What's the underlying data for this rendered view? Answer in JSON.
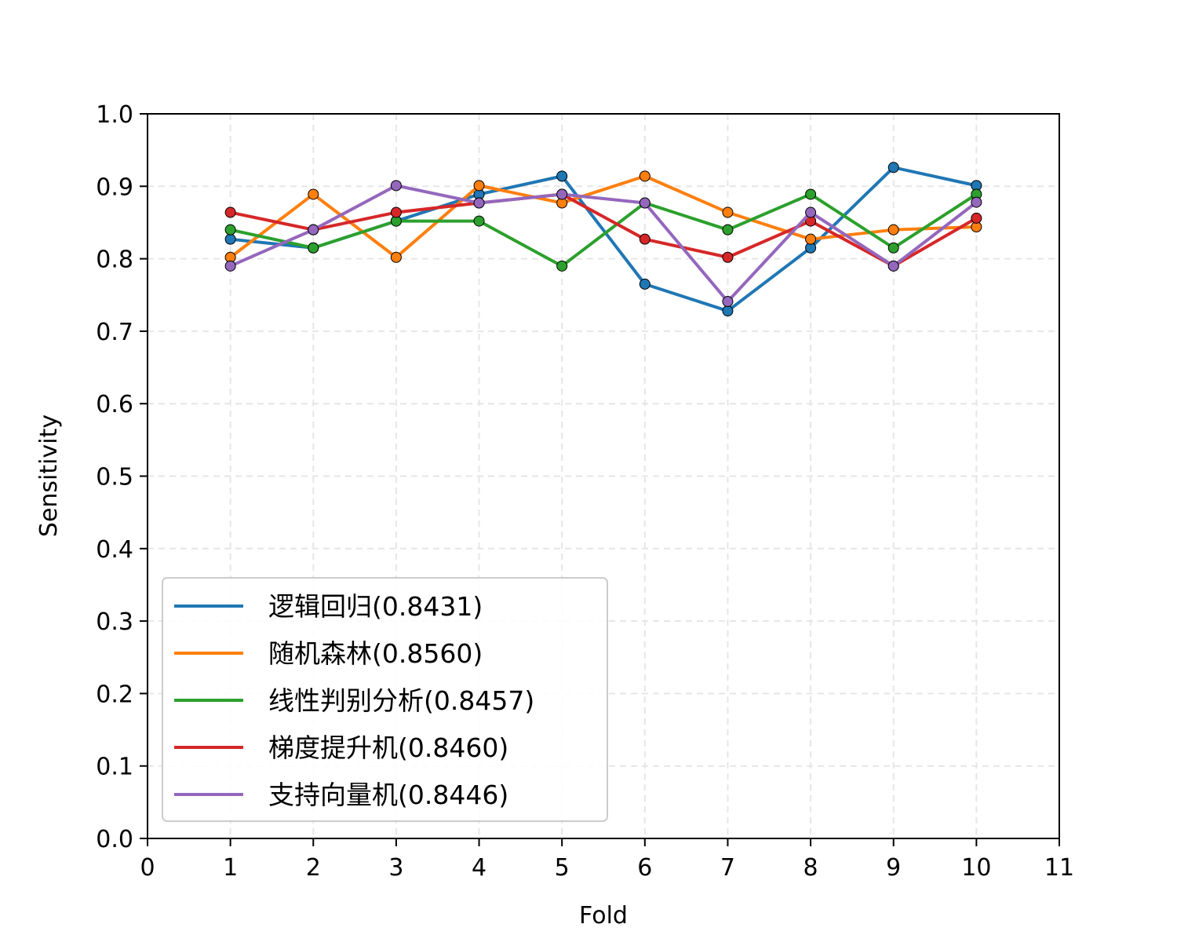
{
  "chart_data": {
    "type": "line",
    "title": "",
    "xlabel": "Fold",
    "ylabel": "Sensitivity",
    "xlim": [
      0,
      11
    ],
    "ylim": [
      0.0,
      1.0
    ],
    "x": [
      1,
      2,
      3,
      4,
      5,
      6,
      7,
      8,
      9,
      10
    ],
    "xticks": [
      "0",
      "1",
      "2",
      "3",
      "4",
      "5",
      "6",
      "7",
      "8",
      "9",
      "10",
      "11"
    ],
    "yticks": [
      "0.0",
      "0.1",
      "0.2",
      "0.3",
      "0.4",
      "0.5",
      "0.6",
      "0.7",
      "0.8",
      "0.9",
      "1.0"
    ],
    "grid": true,
    "legend_position": "lower-left",
    "series": [
      {
        "name": "逻辑回归(0.8431)",
        "color": "#1f77b4",
        "values": [
          0.827,
          0.815,
          0.852,
          0.889,
          0.914,
          0.765,
          0.728,
          0.815,
          0.926,
          0.901
        ]
      },
      {
        "name": "随机森林(0.8560)",
        "color": "#ff7f0e",
        "values": [
          0.802,
          0.889,
          0.802,
          0.901,
          0.877,
          0.914,
          0.864,
          0.827,
          0.84,
          0.844
        ]
      },
      {
        "name": "线性判别分析(0.8457)",
        "color": "#2ca02c",
        "values": [
          0.84,
          0.815,
          0.852,
          0.852,
          0.79,
          0.877,
          0.84,
          0.889,
          0.815,
          0.889
        ]
      },
      {
        "name": "梯度提升机(0.8460)",
        "color": "#d62728",
        "values": [
          0.864,
          0.84,
          0.864,
          0.877,
          0.889,
          0.827,
          0.802,
          0.852,
          0.79,
          0.856
        ]
      },
      {
        "name": "支持向量机(0.8446)",
        "color": "#9467bd",
        "values": [
          0.79,
          0.84,
          0.901,
          0.877,
          0.889,
          0.877,
          0.741,
          0.864,
          0.79,
          0.878
        ]
      }
    ]
  }
}
